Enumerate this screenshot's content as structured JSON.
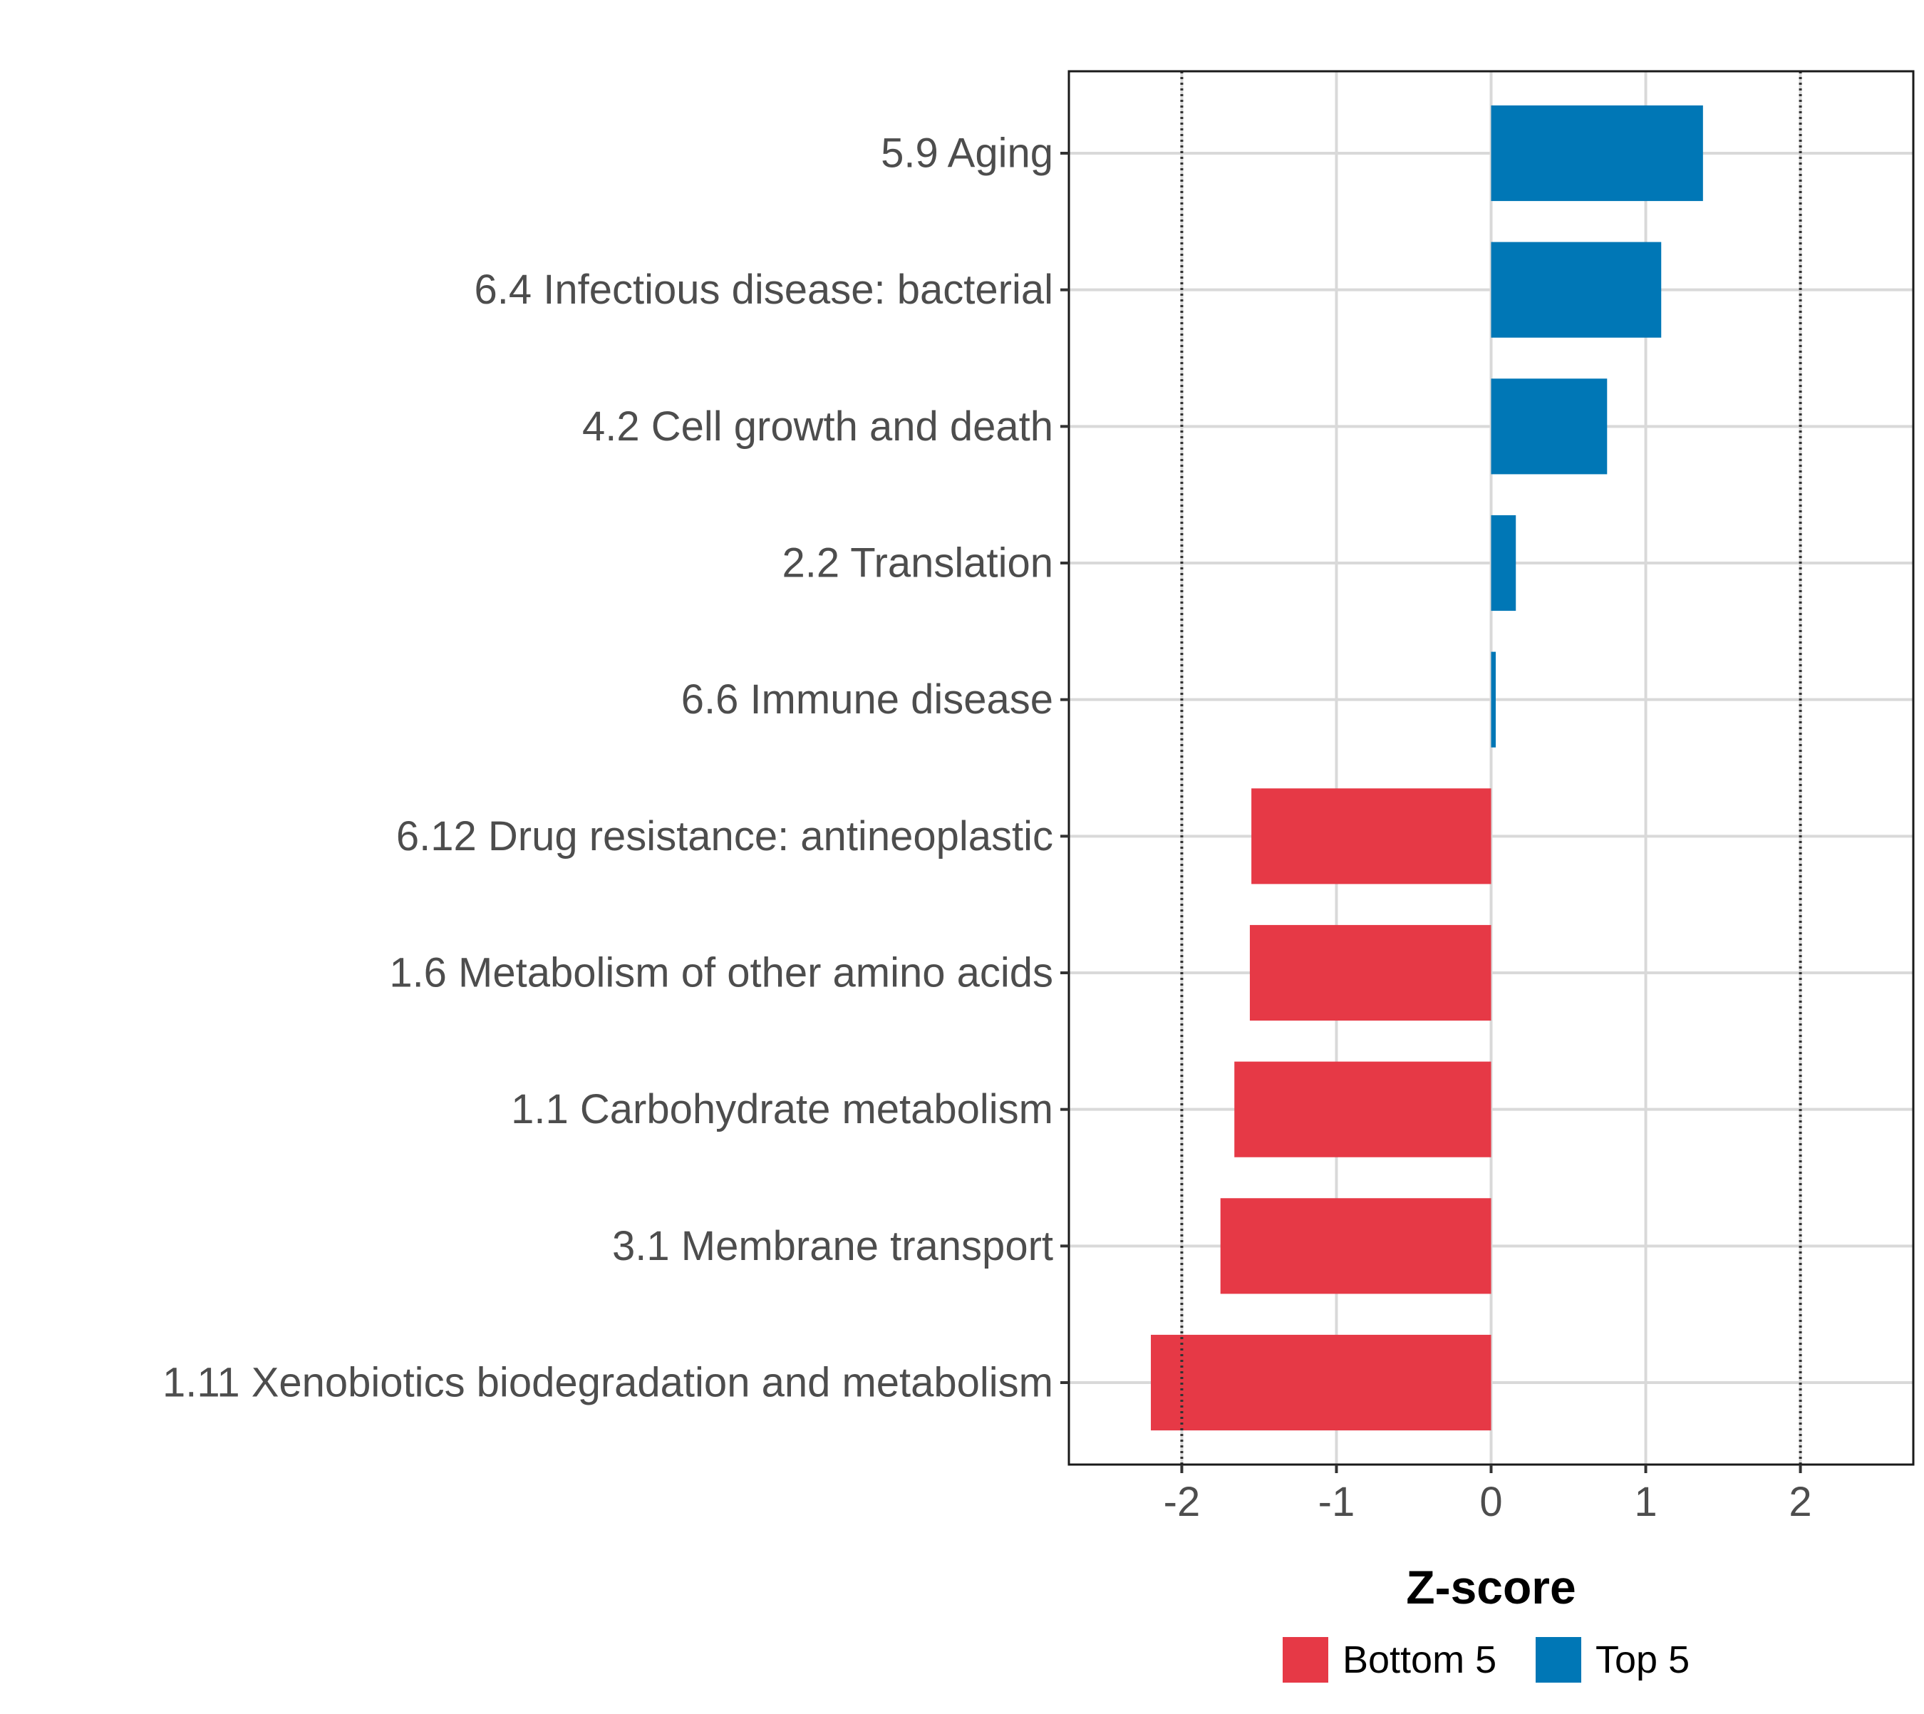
{
  "chart_data": {
    "type": "bar",
    "orientation": "horizontal",
    "categories": [
      "5.9 Aging",
      "6.4 Infectious disease: bacterial",
      "4.2 Cell growth and death",
      "2.2 Translation",
      "6.6 Immune disease",
      "6.12 Drug resistance: antineoplastic",
      "1.6 Metabolism of other amino acids",
      "1.1 Carbohydrate metabolism",
      "3.1 Membrane transport",
      "1.11 Xenobiotics biodegradation and metabolism"
    ],
    "values": [
      1.37,
      1.1,
      0.75,
      0.16,
      0.03,
      -1.55,
      -1.56,
      -1.66,
      -1.75,
      -2.2
    ],
    "groups": [
      "Top 5",
      "Top 5",
      "Top 5",
      "Top 5",
      "Top 5",
      "Bottom 5",
      "Bottom 5",
      "Bottom 5",
      "Bottom 5",
      "Bottom 5"
    ],
    "xlabel": "Z-score",
    "ylabel": "",
    "title": "",
    "xlim": [
      -2.73,
      2.73
    ],
    "xticks": [
      -2,
      -1,
      0,
      1,
      2
    ],
    "xtick_labels": [
      "-2",
      "-1",
      "0",
      "1",
      "2"
    ],
    "reference_lines": [
      -2,
      2
    ],
    "grid": true,
    "legend": {
      "position": "bottom",
      "items": [
        {
          "label": "Bottom 5",
          "color": "#E63946"
        },
        {
          "label": "Top 5",
          "color": "#0077B6"
        }
      ]
    },
    "colors": {
      "Top 5": "#0077B6",
      "Bottom 5": "#E63946"
    }
  }
}
